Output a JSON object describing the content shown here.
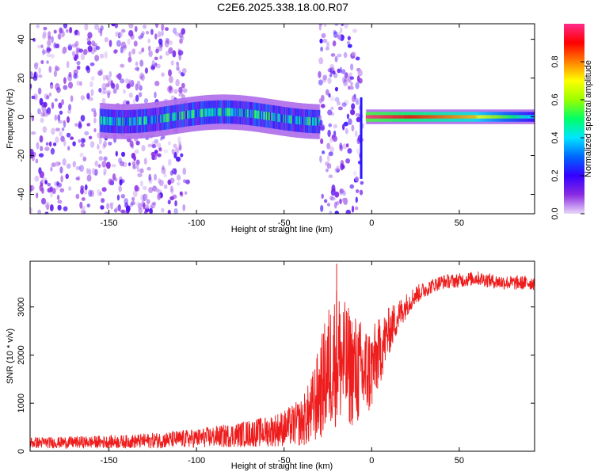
{
  "figure": {
    "title": "C2E6.2025.338.18.00.R07"
  },
  "chart_data": [
    {
      "id": "spectrogram",
      "type": "heatmap",
      "title": "",
      "xlabel": "Height of straight line (km)",
      "ylabel": "Frequency (Hz)",
      "xlim": [
        -195,
        93
      ],
      "ylim": [
        -50,
        48
      ],
      "xticks": [
        -150,
        -100,
        -50,
        0,
        50
      ],
      "yticks": [
        -40,
        -20,
        0,
        20,
        40
      ],
      "xtick_labels": [
        "-150",
        "-100",
        "-50",
        "0",
        "50"
      ],
      "ytick_labels": [
        "-40",
        "-20",
        "0",
        "20",
        "40"
      ],
      "colorbar": {
        "label": "Normalized spectral amplitude",
        "range": [
          0,
          1
        ],
        "ticks": [
          0,
          0.2,
          0.4,
          0.6,
          0.8
        ],
        "tick_labels": [
          "0.0",
          "0.2",
          "0.4",
          "0.6",
          "0.8"
        ],
        "colormap": [
          "#e8d8f8",
          "#8a2be2",
          "#3300ff",
          "#0066ff",
          "#00e5ff",
          "#00ff66",
          "#99ff00",
          "#ffff00",
          "#ff8000",
          "#ff0000",
          "#ff2a8a"
        ]
      },
      "features": [
        {
          "name": "scattered noise region",
          "x_range": [
            -195,
            -105
          ],
          "freq_range": [
            -50,
            48
          ],
          "amplitude": 0.1
        },
        {
          "name": "signal band",
          "x_range": [
            -155,
            -30
          ],
          "center_hz": 0,
          "half_width_hz": 6,
          "amplitude": 0.35
        },
        {
          "name": "transition noise",
          "x_range": [
            -30,
            -5
          ],
          "freq_range": [
            -50,
            48
          ],
          "amplitude": 0.12
        },
        {
          "name": "strong tone",
          "x_range": [
            -3,
            93
          ],
          "center_hz": 0,
          "half_width_hz": 2.5,
          "amplitude": 1.0
        }
      ]
    },
    {
      "id": "snr",
      "type": "line",
      "title": "",
      "xlabel": "Height of straight line (km)",
      "ylabel": "SNR (10 * v/v)",
      "xlim": [
        -195,
        93
      ],
      "ylim": [
        0,
        3950
      ],
      "xticks": [
        -150,
        -100,
        -50,
        0,
        50
      ],
      "yticks": [
        0,
        1000,
        2000,
        3000
      ],
      "xtick_labels": [
        "-150",
        "-100",
        "-50",
        "0",
        "50"
      ],
      "ytick_labels": [
        "0",
        "1000",
        "2000",
        "3000"
      ],
      "color": "#ee1c1c",
      "series": [
        {
          "name": "SNR",
          "x": [
            -195,
            -180,
            -160,
            -140,
            -120,
            -100,
            -80,
            -60,
            -50,
            -40,
            -35,
            -30,
            -25,
            -20,
            -15,
            -10,
            -5,
            0,
            5,
            10,
            15,
            20,
            25,
            30,
            35,
            40,
            50,
            60,
            70,
            80,
            93
          ],
          "y": [
            180,
            180,
            190,
            200,
            230,
            270,
            330,
            410,
            480,
            600,
            800,
            1200,
            1700,
            2000,
            1800,
            1700,
            1600,
            1700,
            2100,
            2500,
            2800,
            3050,
            3250,
            3350,
            3450,
            3520,
            3550,
            3600,
            3530,
            3500,
            3500
          ],
          "noise_amplitude": [
            120,
            120,
            130,
            140,
            170,
            200,
            250,
            320,
            380,
            500,
            700,
            1000,
            1300,
            1500,
            1300,
            1200,
            1100,
            900,
            700,
            500,
            350,
            250,
            200,
            170,
            150,
            150,
            150,
            150,
            150,
            150,
            150
          ]
        }
      ]
    }
  ]
}
